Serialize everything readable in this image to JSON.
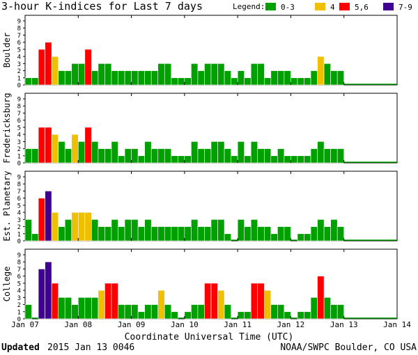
{
  "chart_data": {
    "type": "bar",
    "title": "3-hour K-indices for Last 7 days",
    "legend": {
      "title": "Legend:",
      "items": [
        {
          "label": "0-3",
          "color": "#00a000"
        },
        {
          "label": "4",
          "color": "#f0c000"
        },
        {
          "label": "5,6",
          "color": "#ff0000"
        },
        {
          "label": "7-9",
          "color": "#400090"
        }
      ]
    },
    "xlabel": "Coordinate Universal Time (UTC)",
    "x_ticks": [
      "Jan 07",
      "Jan 08",
      "Jan 09",
      "Jan 10",
      "Jan 11",
      "Jan 12",
      "Jan 13",
      "Jan 14"
    ],
    "y_ticks": [
      "0",
      "1",
      "2",
      "3",
      "4",
      "5",
      "6",
      "7",
      "8",
      "9"
    ],
    "ylim": [
      0,
      9
    ],
    "bins": 56,
    "series": [
      {
        "name": "Boulder",
        "values": [
          1,
          1,
          5,
          6,
          4,
          2,
          2,
          3,
          3,
          5,
          2,
          3,
          3,
          2,
          2,
          2,
          2,
          2,
          2,
          2,
          3,
          3,
          1,
          1,
          1,
          3,
          2,
          3,
          3,
          3,
          2,
          1,
          2,
          1,
          3,
          3,
          1,
          2,
          2,
          2,
          1,
          1,
          1,
          2,
          4,
          3,
          2,
          2
        ]
      },
      {
        "name": "Fredericksburg",
        "values": [
          2,
          2,
          5,
          5,
          4,
          3,
          2,
          4,
          3,
          5,
          3,
          2,
          2,
          3,
          1,
          2,
          2,
          1,
          3,
          2,
          2,
          2,
          1,
          1,
          1,
          3,
          2,
          2,
          3,
          3,
          2,
          1,
          3,
          1,
          3,
          2,
          2,
          1,
          2,
          1,
          1,
          1,
          1,
          2,
          3,
          2,
          2,
          2
        ]
      },
      {
        "name": "Est. Planetary",
        "values": [
          3,
          1,
          6,
          7,
          4,
          2,
          3,
          4,
          4,
          4,
          3,
          2,
          2,
          3,
          2,
          3,
          3,
          2,
          3,
          2,
          2,
          2,
          2,
          2,
          2,
          3,
          2,
          2,
          3,
          3,
          1,
          0,
          3,
          2,
          3,
          2,
          2,
          1,
          2,
          2,
          0,
          1,
          1,
          2,
          3,
          2,
          3,
          2
        ]
      },
      {
        "name": "College",
        "values": [
          2,
          0,
          7,
          8,
          5,
          3,
          3,
          2,
          3,
          3,
          3,
          4,
          5,
          5,
          2,
          2,
          2,
          1,
          2,
          2,
          4,
          2,
          1,
          0,
          1,
          2,
          2,
          5,
          5,
          4,
          2,
          0,
          1,
          1,
          5,
          5,
          4,
          2,
          2,
          1,
          0,
          1,
          1,
          3,
          6,
          3,
          2,
          2
        ]
      }
    ]
  },
  "footer": {
    "updated_label": "Updated",
    "updated_value": "2015 Jan 13 0046",
    "credit": "NOAA/SWPC Boulder, CO USA"
  }
}
